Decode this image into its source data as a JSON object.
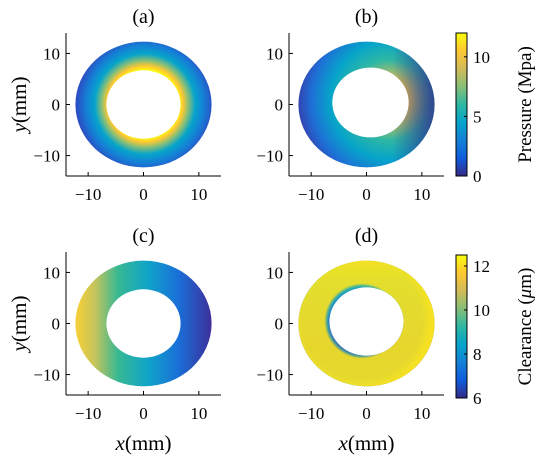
{
  "chart_data": [
    {
      "type": "heatmap",
      "panel_label": "(a)",
      "xlim": [
        -14,
        14
      ],
      "ylim": [
        -14,
        14
      ],
      "xticks": [
        -10,
        0,
        10
      ],
      "yticks": [
        -10,
        0,
        10
      ],
      "ylabel_prefix": "y",
      "ylabel_unit": "(mm)",
      "inner_radius_mm": 6.7,
      "outer_radius_mm": 12.3,
      "colorbar": "pressure"
    },
    {
      "type": "heatmap",
      "panel_label": "(b)",
      "xlim": [
        -14,
        14
      ],
      "ylim": [
        -14,
        14
      ],
      "xticks": [
        -10,
        0,
        10
      ],
      "yticks": [
        -10,
        0,
        10
      ],
      "inner_radius_mm": 6.7,
      "outer_radius_mm": 12.3,
      "colorbar": "pressure"
    },
    {
      "type": "heatmap",
      "panel_label": "(c)",
      "xlim": [
        -14,
        14
      ],
      "ylim": [
        -14,
        14
      ],
      "xticks": [
        -10,
        0,
        10
      ],
      "yticks": [
        -10,
        0,
        10
      ],
      "xlabel_prefix": "x",
      "xlabel_unit": "(mm)",
      "ylabel_prefix": "y",
      "ylabel_unit": "(mm)",
      "inner_radius_mm": 6.7,
      "outer_radius_mm": 12.3,
      "colorbar": "clearance"
    },
    {
      "type": "heatmap",
      "panel_label": "(d)",
      "xlim": [
        -14,
        14
      ],
      "ylim": [
        -14,
        14
      ],
      "xticks": [
        -10,
        0,
        10
      ],
      "yticks": [
        -10,
        0,
        10
      ],
      "xlabel_prefix": "x",
      "xlabel_unit": "(mm)",
      "inner_radius_mm": 6.7,
      "outer_radius_mm": 12.3,
      "colorbar": "clearance"
    }
  ],
  "colorbars": {
    "pressure": {
      "label": "Pressure (Mpa)",
      "range": [
        0,
        12
      ],
      "ticks": [
        0,
        5,
        10
      ],
      "colormap": "parula"
    },
    "clearance": {
      "label_prefix": "Clearance (",
      "label_mu": "μ",
      "label_suffix": "m)",
      "range": [
        6,
        12.5
      ],
      "ticks": [
        6,
        8,
        10,
        12
      ],
      "colormap": "parula"
    }
  },
  "colors": {
    "parula": [
      "#352a87",
      "#0f5cdd",
      "#1481d6",
      "#06a4ca",
      "#2eb7a4",
      "#87bf77",
      "#d1bb59",
      "#fec832",
      "#f9fb0e"
    ]
  }
}
